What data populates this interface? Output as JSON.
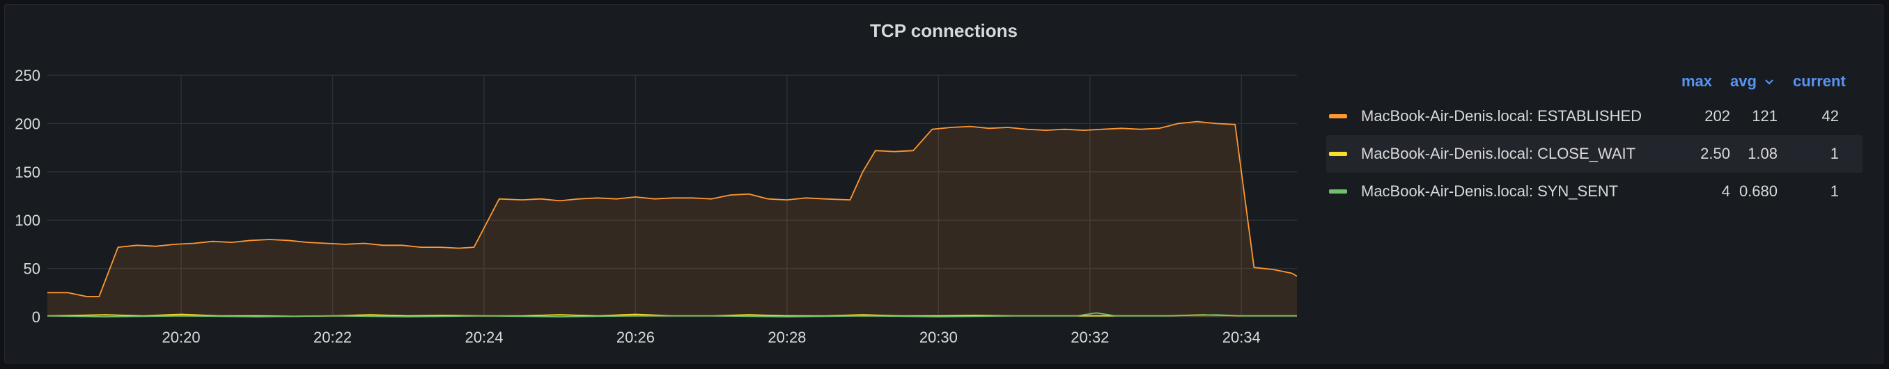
{
  "panel": {
    "title": "TCP connections"
  },
  "legend": {
    "headers": {
      "max": "max",
      "avg": "avg",
      "current": "current"
    },
    "sort_icon": "chevron-down-icon"
  },
  "chart_data": {
    "type": "area",
    "title": "TCP connections",
    "xlabel": "",
    "ylabel": "",
    "ylim": [
      0,
      250
    ],
    "yticks": [
      0,
      50,
      100,
      150,
      200,
      250
    ],
    "xlim": [
      "20:18:14",
      "20:34:44"
    ],
    "xticks": [
      "20:20",
      "20:22",
      "20:24",
      "20:26",
      "20:28",
      "20:30",
      "20:32",
      "20:34"
    ],
    "grid": true,
    "legend_position": "right",
    "series": [
      {
        "name": "MacBook-Air-Denis.local: ESTABLISHED",
        "color": "#ff9830",
        "stats": {
          "max": "202",
          "avg": "121",
          "current": "42"
        },
        "points": [
          [
            "20:18:14",
            25
          ],
          [
            "20:18:30",
            25
          ],
          [
            "20:18:45",
            21
          ],
          [
            "20:18:55",
            21
          ],
          [
            "20:19:10",
            72
          ],
          [
            "20:19:25",
            74
          ],
          [
            "20:19:40",
            73
          ],
          [
            "20:19:55",
            75
          ],
          [
            "20:20:10",
            76
          ],
          [
            "20:20:25",
            78
          ],
          [
            "20:20:40",
            77
          ],
          [
            "20:20:55",
            79
          ],
          [
            "20:21:10",
            80
          ],
          [
            "20:21:25",
            79
          ],
          [
            "20:21:40",
            77
          ],
          [
            "20:21:55",
            76
          ],
          [
            "20:22:10",
            75
          ],
          [
            "20:22:25",
            76
          ],
          [
            "20:22:40",
            74
          ],
          [
            "20:22:55",
            74
          ],
          [
            "20:23:10",
            72
          ],
          [
            "20:23:25",
            72
          ],
          [
            "20:23:40",
            71
          ],
          [
            "20:23:52",
            72
          ],
          [
            "20:24:12",
            122
          ],
          [
            "20:24:30",
            121
          ],
          [
            "20:24:45",
            122
          ],
          [
            "20:25:00",
            120
          ],
          [
            "20:25:15",
            122
          ],
          [
            "20:25:30",
            123
          ],
          [
            "20:25:45",
            122
          ],
          [
            "20:26:00",
            124
          ],
          [
            "20:26:15",
            122
          ],
          [
            "20:26:30",
            123
          ],
          [
            "20:26:45",
            123
          ],
          [
            "20:27:00",
            122
          ],
          [
            "20:27:15",
            126
          ],
          [
            "20:27:30",
            127
          ],
          [
            "20:27:45",
            122
          ],
          [
            "20:28:00",
            121
          ],
          [
            "20:28:15",
            123
          ],
          [
            "20:28:30",
            122
          ],
          [
            "20:28:50",
            121
          ],
          [
            "20:29:00",
            150
          ],
          [
            "20:29:10",
            172
          ],
          [
            "20:29:25",
            171
          ],
          [
            "20:29:40",
            172
          ],
          [
            "20:29:55",
            194
          ],
          [
            "20:30:10",
            196
          ],
          [
            "20:30:25",
            197
          ],
          [
            "20:30:40",
            195
          ],
          [
            "20:30:55",
            196
          ],
          [
            "20:31:10",
            194
          ],
          [
            "20:31:25",
            193
          ],
          [
            "20:31:40",
            194
          ],
          [
            "20:31:55",
            193
          ],
          [
            "20:32:10",
            194
          ],
          [
            "20:32:25",
            195
          ],
          [
            "20:32:40",
            194
          ],
          [
            "20:32:55",
            195
          ],
          [
            "20:33:10",
            200
          ],
          [
            "20:33:25",
            202
          ],
          [
            "20:33:40",
            200
          ],
          [
            "20:33:55",
            199
          ],
          [
            "20:34:10",
            51
          ],
          [
            "20:34:25",
            49
          ],
          [
            "20:34:40",
            45
          ],
          [
            "20:34:44",
            42
          ]
        ]
      },
      {
        "name": "MacBook-Air-Denis.local: CLOSE_WAIT",
        "color": "#fade2a",
        "stats": {
          "max": "2.50",
          "avg": "1.08",
          "current": "1"
        },
        "points": [
          [
            "20:18:14",
            1
          ],
          [
            "20:18:40",
            1.5
          ],
          [
            "20:19:00",
            2
          ],
          [
            "20:19:30",
            1
          ],
          [
            "20:20:00",
            2.5
          ],
          [
            "20:20:30",
            1
          ],
          [
            "20:21:00",
            1
          ],
          [
            "20:21:30",
            0.5
          ],
          [
            "20:22:00",
            1
          ],
          [
            "20:22:30",
            2
          ],
          [
            "20:23:00",
            1
          ],
          [
            "20:23:30",
            1.5
          ],
          [
            "20:24:00",
            1
          ],
          [
            "20:24:30",
            1
          ],
          [
            "20:25:00",
            2
          ],
          [
            "20:25:30",
            1
          ],
          [
            "20:26:00",
            2.5
          ],
          [
            "20:26:30",
            1
          ],
          [
            "20:27:00",
            1
          ],
          [
            "20:27:30",
            2
          ],
          [
            "20:28:00",
            1
          ],
          [
            "20:28:30",
            1
          ],
          [
            "20:29:00",
            2
          ],
          [
            "20:29:30",
            1
          ],
          [
            "20:30:00",
            1
          ],
          [
            "20:30:30",
            1.5
          ],
          [
            "20:31:00",
            1
          ],
          [
            "20:31:30",
            1
          ],
          [
            "20:32:00",
            1
          ],
          [
            "20:32:30",
            1
          ],
          [
            "20:33:00",
            1
          ],
          [
            "20:33:30",
            2
          ],
          [
            "20:34:00",
            1
          ],
          [
            "20:34:44",
            1
          ]
        ]
      },
      {
        "name": "MacBook-Air-Denis.local: SYN_SENT",
        "color": "#73bf69",
        "stats": {
          "max": "4",
          "avg": "0.680",
          "current": "1"
        },
        "points": [
          [
            "20:18:14",
            1
          ],
          [
            "20:19:00",
            0
          ],
          [
            "20:20:00",
            1
          ],
          [
            "20:21:00",
            0
          ],
          [
            "20:22:00",
            1
          ],
          [
            "20:23:00",
            0
          ],
          [
            "20:24:00",
            1
          ],
          [
            "20:25:00",
            0
          ],
          [
            "20:26:00",
            1
          ],
          [
            "20:27:00",
            1
          ],
          [
            "20:28:00",
            0
          ],
          [
            "20:29:00",
            1
          ],
          [
            "20:30:00",
            0
          ],
          [
            "20:31:00",
            1
          ],
          [
            "20:31:50",
            1
          ],
          [
            "20:32:05",
            4
          ],
          [
            "20:32:20",
            1
          ],
          [
            "20:33:00",
            1
          ],
          [
            "20:33:40",
            2
          ],
          [
            "20:34:00",
            1
          ],
          [
            "20:34:44",
            1
          ]
        ]
      }
    ]
  }
}
